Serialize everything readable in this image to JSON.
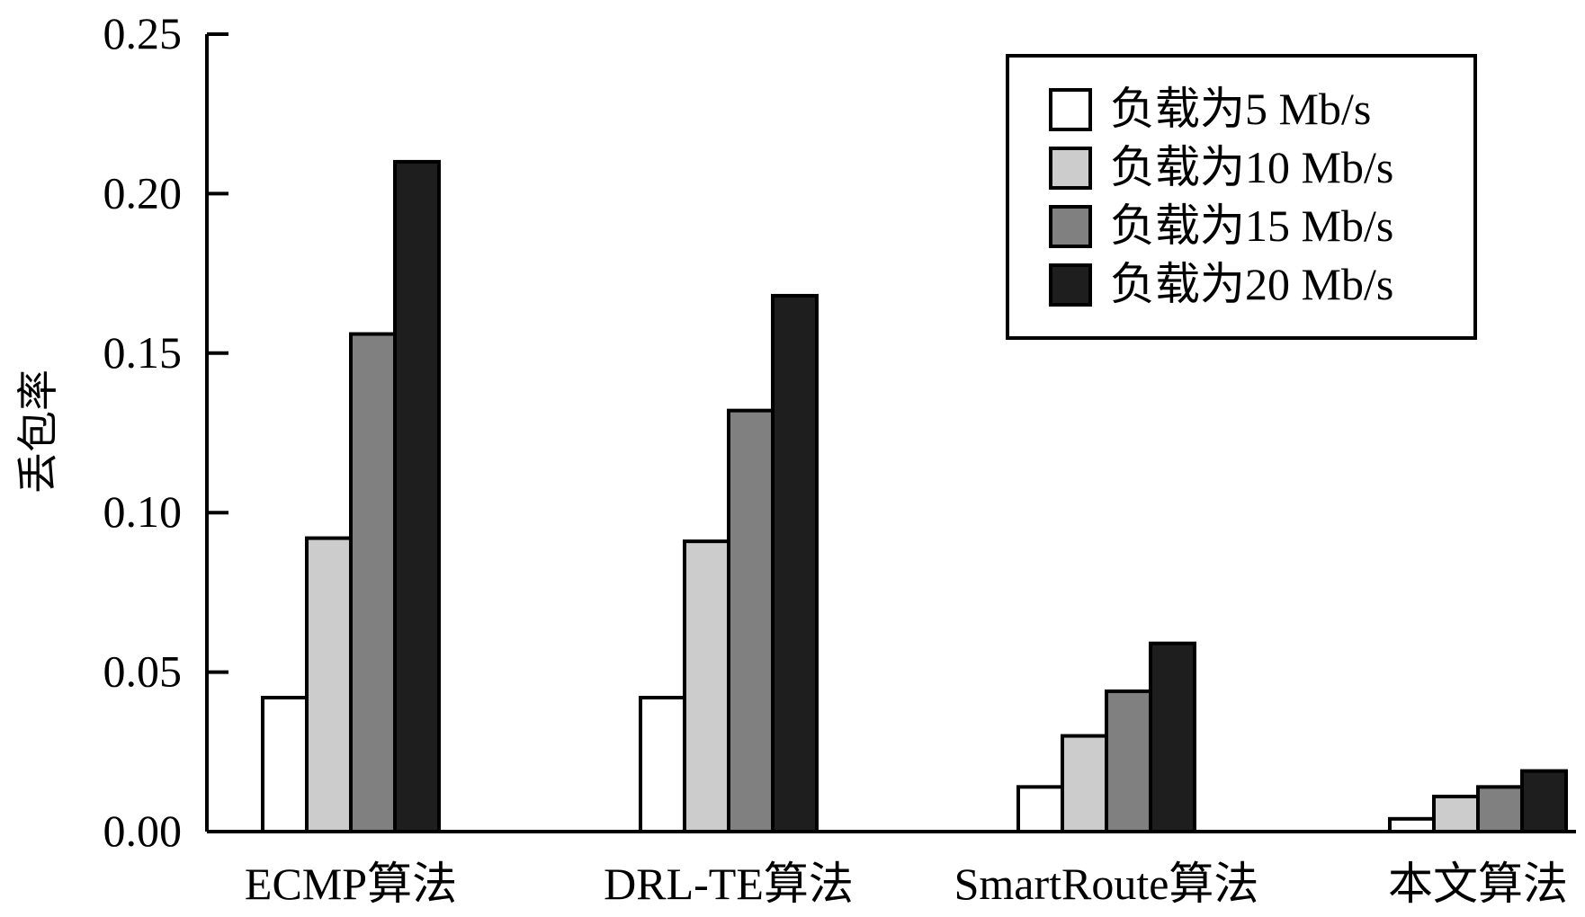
{
  "chart_data": {
    "type": "bar",
    "ylabel": "丢包率",
    "xlabel": "",
    "ylim": [
      0,
      0.25
    ],
    "yticks": [
      {
        "value": 0.0,
        "label": "0.00"
      },
      {
        "value": 0.05,
        "label": "0.05"
      },
      {
        "value": 0.1,
        "label": "0.10"
      },
      {
        "value": 0.15,
        "label": "0.15"
      },
      {
        "value": 0.2,
        "label": "0.20"
      },
      {
        "value": 0.25,
        "label": "0.25"
      }
    ],
    "categories": [
      "ECMP算法",
      "DRL-TE算法",
      "SmartRoute算法",
      "本文算法"
    ],
    "series": [
      {
        "name": "负载为5 Mb/s",
        "color": "#ffffff",
        "values": [
          0.042,
          0.042,
          0.014,
          0.004
        ]
      },
      {
        "name": "负载为10 Mb/s",
        "color": "#cccccc",
        "values": [
          0.092,
          0.091,
          0.03,
          0.011
        ]
      },
      {
        "name": "负载为15 Mb/s",
        "color": "#808080",
        "values": [
          0.156,
          0.132,
          0.044,
          0.014
        ]
      },
      {
        "name": "负载为20 Mb/s",
        "color": "#1e1e1e",
        "values": [
          0.21,
          0.168,
          0.059,
          0.019
        ]
      }
    ],
    "legend_position": "top-right",
    "grid": false
  }
}
